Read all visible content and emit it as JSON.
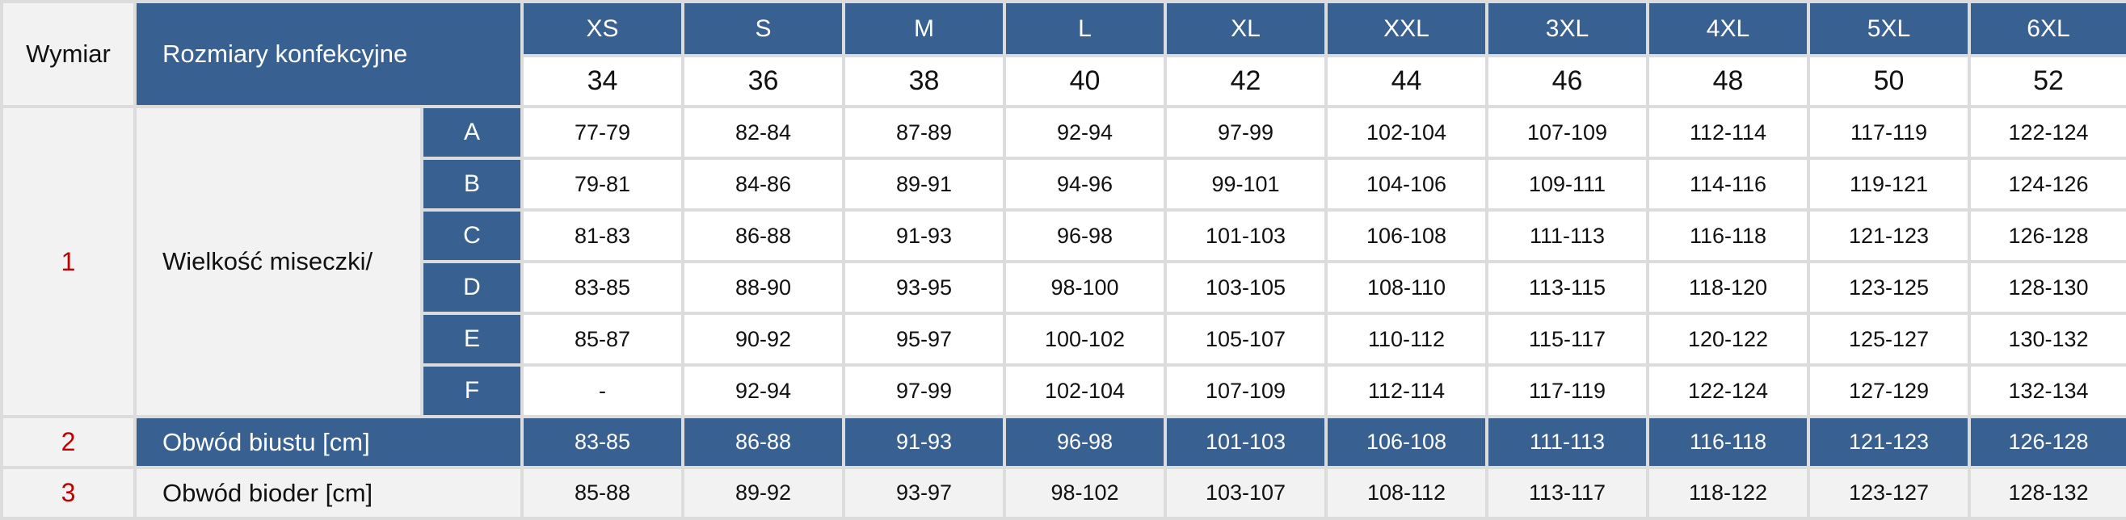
{
  "header": {
    "dimension_label": "Wymiar",
    "sizes_label": "Rozmiary konfekcyjne",
    "size_letters": [
      "XS",
      "S",
      "M",
      "L",
      "XL",
      "XXL",
      "3XL",
      "4XL",
      "5XL",
      "6XL"
    ],
    "size_numbers": [
      "34",
      "36",
      "38",
      "40",
      "42",
      "44",
      "46",
      "48",
      "50",
      "52"
    ]
  },
  "cup": {
    "number": "1",
    "label": "Wielkość miseczki/",
    "rows": [
      {
        "cup": "A",
        "values": [
          "77-79",
          "82-84",
          "87-89",
          "92-94",
          "97-99",
          "102-104",
          "107-109",
          "112-114",
          "117-119",
          "122-124"
        ]
      },
      {
        "cup": "B",
        "values": [
          "79-81",
          "84-86",
          "89-91",
          "94-96",
          "99-101",
          "104-106",
          "109-111",
          "114-116",
          "119-121",
          "124-126"
        ]
      },
      {
        "cup": "C",
        "values": [
          "81-83",
          "86-88",
          "91-93",
          "96-98",
          "101-103",
          "106-108",
          "111-113",
          "116-118",
          "121-123",
          "126-128"
        ]
      },
      {
        "cup": "D",
        "values": [
          "83-85",
          "88-90",
          "93-95",
          "98-100",
          "103-105",
          "108-110",
          "113-115",
          "118-120",
          "123-125",
          "128-130"
        ]
      },
      {
        "cup": "E",
        "values": [
          "85-87",
          "90-92",
          "95-97",
          "100-102",
          "105-107",
          "110-112",
          "115-117",
          "120-122",
          "125-127",
          "130-132"
        ]
      },
      {
        "cup": "F",
        "values": [
          "-",
          "92-94",
          "97-99",
          "102-104",
          "107-109",
          "112-114",
          "117-119",
          "122-124",
          "127-129",
          "132-134"
        ]
      }
    ]
  },
  "bust": {
    "number": "2",
    "label": "Obwód biustu [cm]",
    "values": [
      "83-85",
      "86-88",
      "91-93",
      "96-98",
      "101-103",
      "106-108",
      "111-113",
      "116-118",
      "121-123",
      "126-128"
    ]
  },
  "hips": {
    "number": "3",
    "label": "Obwód bioder [cm]",
    "values": [
      "85-88",
      "89-92",
      "93-97",
      "98-102",
      "103-107",
      "108-112",
      "113-117",
      "118-122",
      "123-127",
      "128-132"
    ]
  },
  "colors": {
    "header_blue": "#386090",
    "row_number_red": "#c00000",
    "grey_bg": "#f2f2f2"
  }
}
